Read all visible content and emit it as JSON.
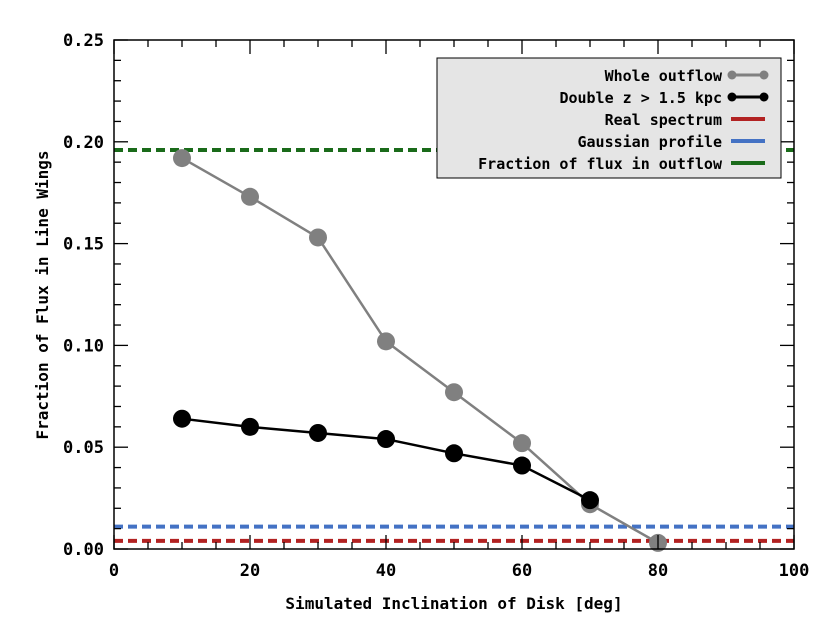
{
  "chart_data": {
    "type": "line",
    "xlabel": "Simulated Inclination of Disk [deg]",
    "ylabel": "Fraction of Flux in Line Wings",
    "xlim": [
      0,
      100
    ],
    "ylim": [
      0,
      0.25
    ],
    "x_ticks": [
      "0",
      "20",
      "40",
      "60",
      "80",
      "100"
    ],
    "y_ticks": [
      "0.00",
      "0.05",
      "0.10",
      "0.15",
      "0.20",
      "0.25"
    ],
    "x_tick_values": [
      0,
      20,
      40,
      60,
      80,
      100
    ],
    "y_tick_values": [
      0,
      0.05,
      0.1,
      0.15,
      0.2,
      0.25
    ],
    "series": [
      {
        "name": "Whole outflow",
        "color": "#808080",
        "x": [
          10,
          20,
          30,
          40,
          50,
          60,
          70,
          80
        ],
        "values": [
          0.192,
          0.173,
          0.153,
          0.102,
          0.077,
          0.052,
          0.022,
          0.003
        ]
      },
      {
        "name": "Double z > 1.5 kpc",
        "color": "#000000",
        "x": [
          10,
          20,
          30,
          40,
          50,
          60,
          70
        ],
        "values": [
          0.064,
          0.06,
          0.057,
          0.054,
          0.047,
          0.041,
          0.024
        ]
      }
    ],
    "hlines": [
      {
        "name": "Real spectrum",
        "color": "#b22222",
        "y": 0.004
      },
      {
        "name": "Gaussian profile",
        "color": "#4472c4",
        "y": 0.011
      },
      {
        "name": "Fraction of flux in outflow",
        "color": "#1a6b1a",
        "y": 0.196
      }
    ],
    "legend_position": "top-right"
  }
}
